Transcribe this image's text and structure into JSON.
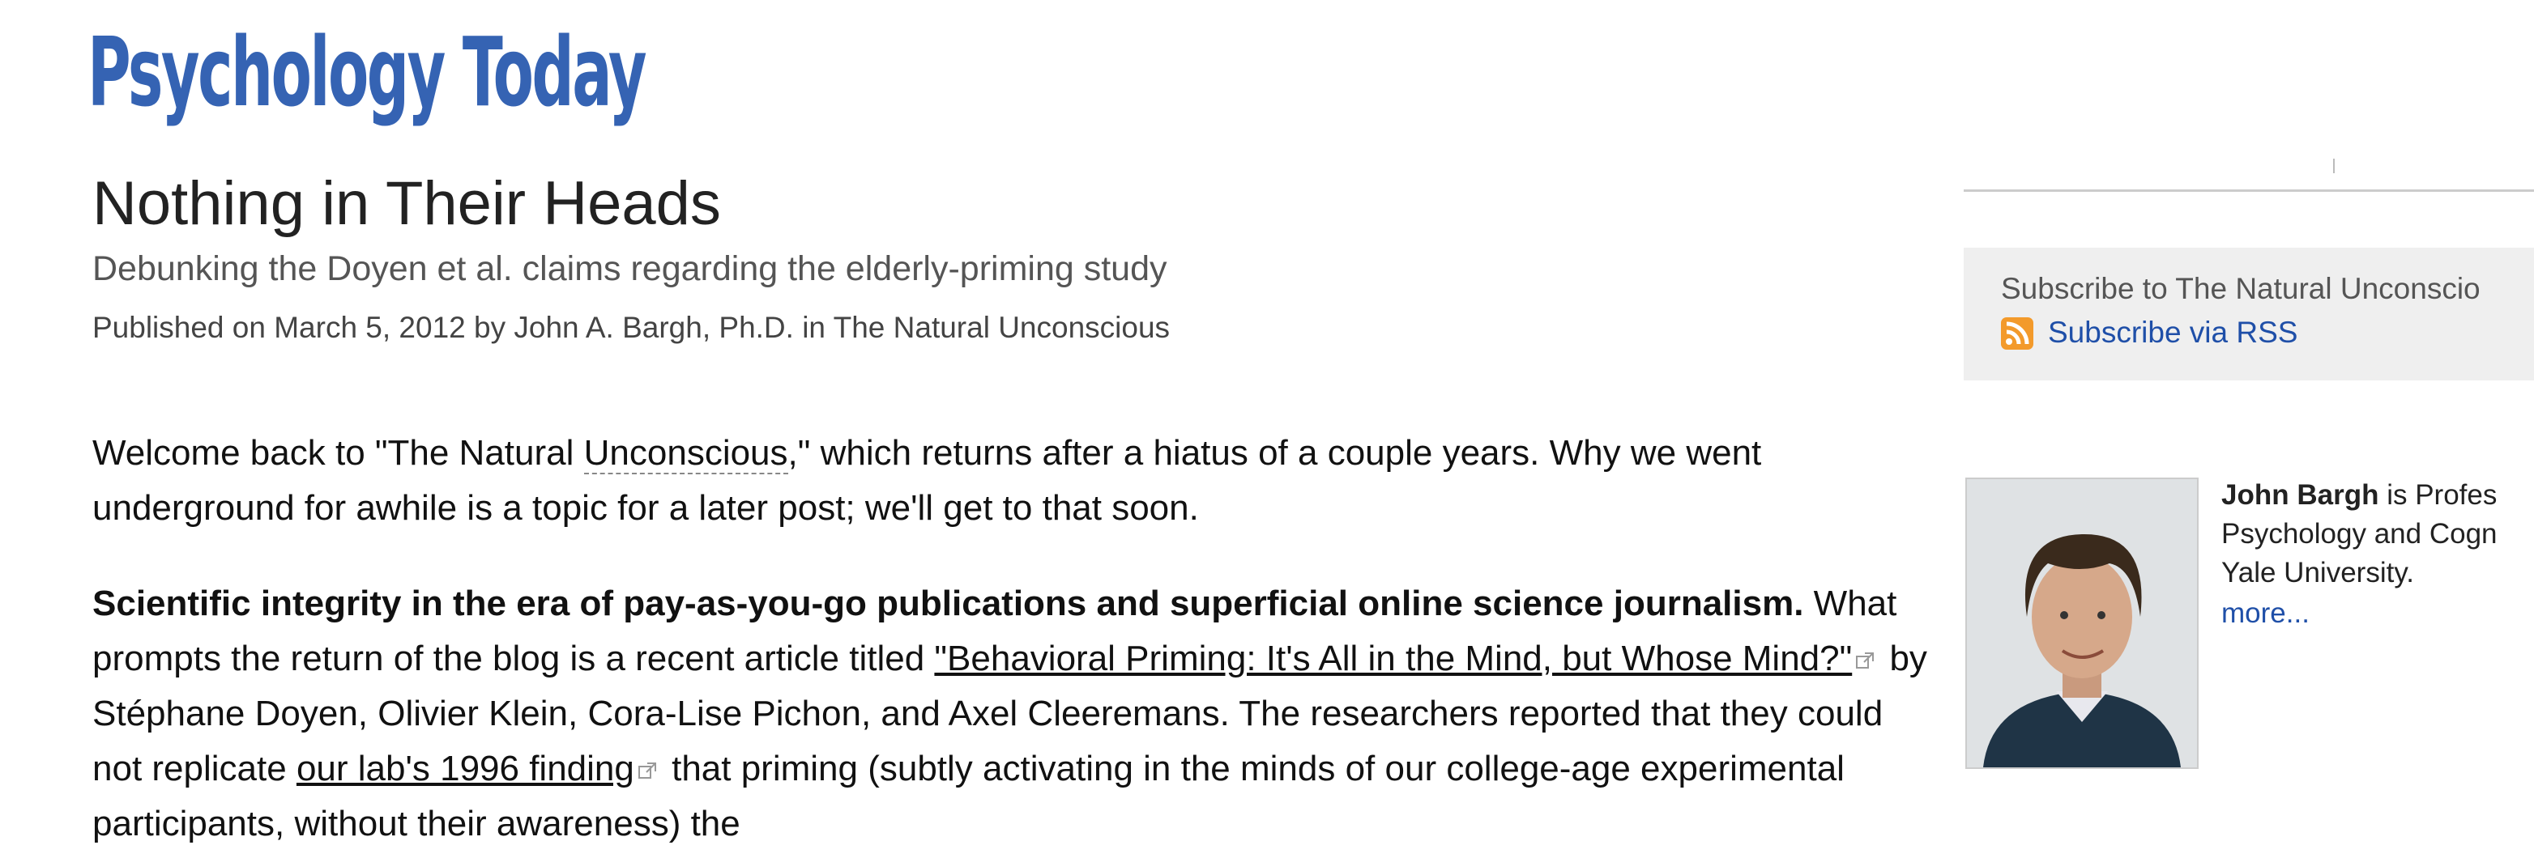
{
  "header": {
    "logo": "Psychology Today"
  },
  "article": {
    "title": "Nothing in Their Heads",
    "subtitle": "Debunking the Doyen et al. claims regarding the elderly-priming study",
    "byline": "Published on March 5, 2012 by John A. Bargh, Ph.D. in The Natural Unconscious",
    "paragraphs": [
      [
        "Welcome back to \"The Natural ",
        "Unconscious",
        ",\" which returns after a hiatus of a couple years. Why we went underground for awhile is a topic for a later post; we'll get to that soon."
      ],
      [
        "Scientific integrity in the era of pay-as-you-go publications and superficial online science journalism.",
        " What prompts the return of the blog is a recent article titled ",
        "\"Behavioral Priming: It's All in the Mind, but Whose Mind?\"",
        " by Stéphane Doyen, Olivier Klein, Cora-Lise Pichon, and Axel Cleeremans. The researchers reported that they could not replicate ",
        "our lab's 1996 finding",
        " that priming (subtly activating in the minds of our college-age experimental participants, without their awareness) the"
      ]
    ]
  },
  "sidebar": {
    "subscribe_text": "Subscribe to The Natural Unconscio",
    "rss_link": "Subscribe via RSS",
    "author_name": "John Bargh",
    "bio_lines": [
      "is Profes",
      "Psychology and Cogn",
      "Yale University."
    ],
    "more_link": "more..."
  }
}
